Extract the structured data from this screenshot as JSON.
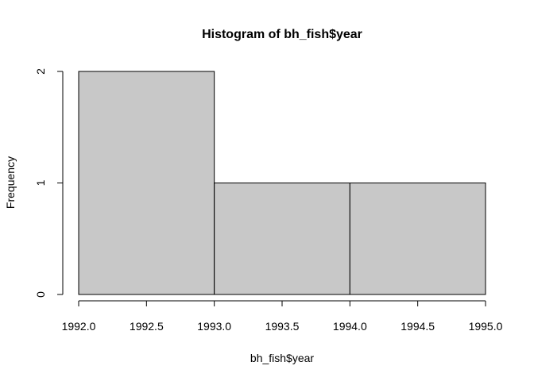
{
  "chart_data": {
    "type": "bar",
    "title": "Histogram of bh_fish$year",
    "xlabel": "bh_fish$year",
    "ylabel": "Frequency",
    "bins": [
      {
        "x0": 1992.0,
        "x1": 1993.0,
        "count": 2
      },
      {
        "x0": 1993.0,
        "x1": 1994.0,
        "count": 1
      },
      {
        "x0": 1994.0,
        "x1": 1995.0,
        "count": 1
      }
    ],
    "xlim": [
      1992.0,
      1995.0
    ],
    "ylim": [
      0,
      2
    ],
    "x_ticks": [
      "1992.0",
      "1992.5",
      "1993.0",
      "1993.5",
      "1994.0",
      "1994.5",
      "1995.0"
    ],
    "y_ticks": [
      "0",
      "1",
      "2"
    ],
    "bar_color": "#c8c8c8",
    "grid": false
  }
}
